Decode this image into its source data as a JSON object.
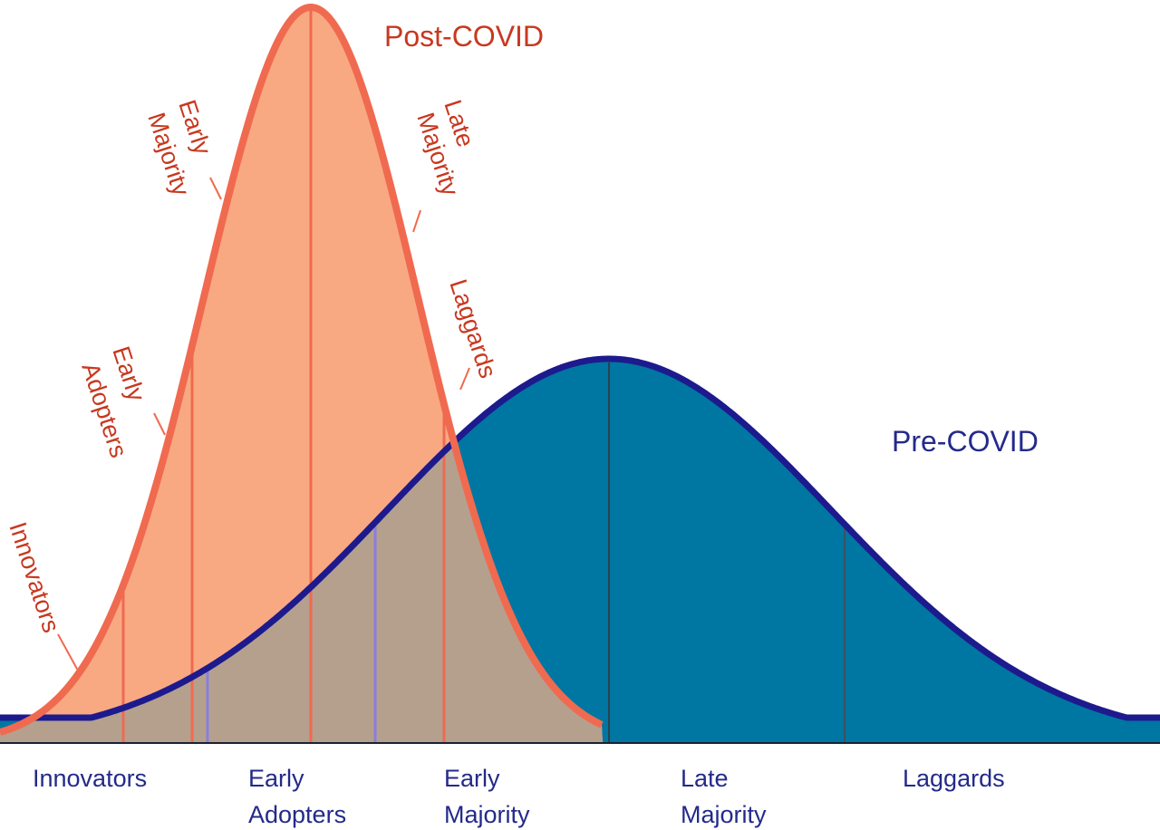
{
  "post_covid": {
    "title": "Post-COVID",
    "segments": [
      {
        "lines": [
          "Innovators"
        ]
      },
      {
        "lines": [
          "Early",
          "Adopters"
        ]
      },
      {
        "lines": [
          "Early",
          "Majority"
        ]
      },
      {
        "lines": [
          "Late",
          "Majority"
        ]
      },
      {
        "lines": [
          "Laggards"
        ]
      }
    ],
    "colors": {
      "fill": "#f8a982",
      "stroke": "#f06a50",
      "divider": "#f06a50",
      "text": "#c8381f"
    }
  },
  "pre_covid": {
    "title": "Pre-COVID",
    "segments": [
      {
        "lines": [
          "Innovators"
        ]
      },
      {
        "lines": [
          "Early",
          "Adopters"
        ]
      },
      {
        "lines": [
          "Early",
          "Majority"
        ]
      },
      {
        "lines": [
          "Late",
          "Majority"
        ]
      },
      {
        "lines": [
          "Laggards"
        ]
      }
    ],
    "colors": {
      "fill": "#0076a2",
      "stroke": "#1d1a8e",
      "divider": "#8c7de0",
      "text": "#232a8a",
      "overlap": "#b5a08e"
    }
  },
  "baseline_color": "#1a2333"
}
